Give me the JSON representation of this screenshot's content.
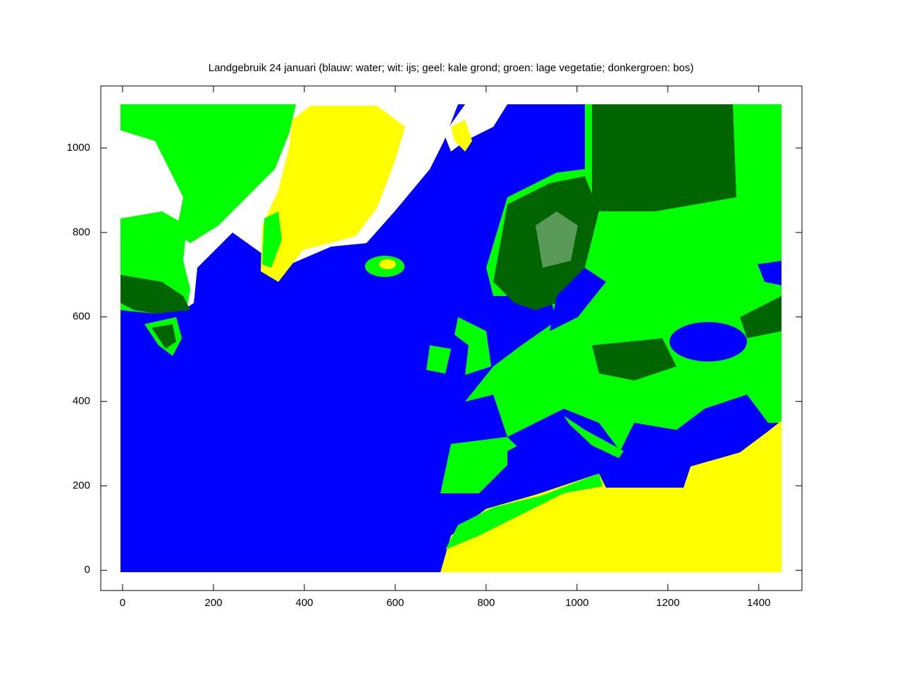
{
  "chart_data": {
    "type": "image",
    "title": "Landgebruik 24 januari (blauw: water; wit: ijs; geel: kale grond; groen: lage vegetatie; donkergroen: bos)",
    "xlim": [
      -48,
      1495
    ],
    "ylim": [
      -48,
      1147
    ],
    "xticks": [
      0,
      200,
      400,
      600,
      800,
      1000,
      1200,
      1400
    ],
    "yticks": [
      0,
      200,
      400,
      600,
      800,
      1000
    ]
  }
}
